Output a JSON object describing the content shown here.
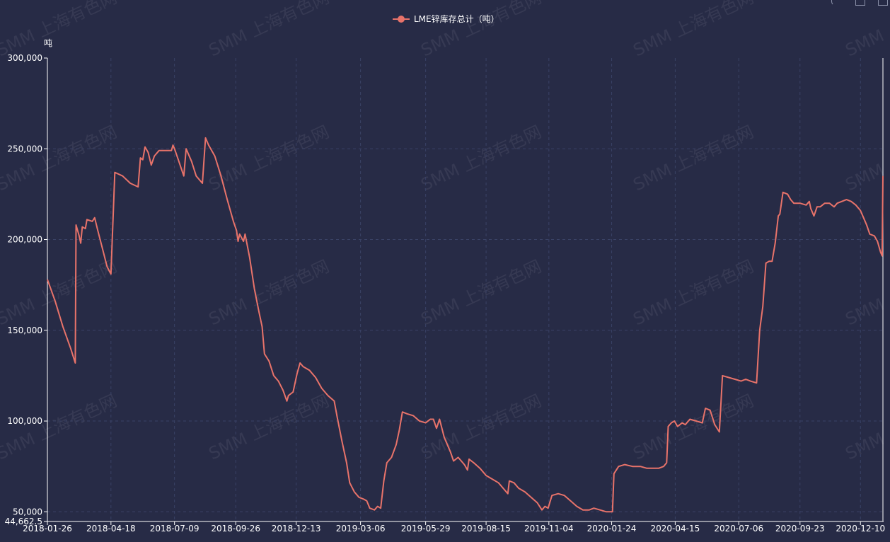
{
  "legend": {
    "label": "LME锌库存总计（吨）",
    "color": "#e8736a"
  },
  "watermark": {
    "text": "SMM 上海有色网"
  },
  "chart_data": {
    "type": "line",
    "ylabel": "吨",
    "ylim": [
      44662.5,
      300000
    ],
    "yticks": [
      {
        "value": 44662.5,
        "label": "44,662.5"
      },
      {
        "value": 50000,
        "label": "50,000"
      },
      {
        "value": 100000,
        "label": "100,000"
      },
      {
        "value": 150000,
        "label": "150,000"
      },
      {
        "value": 200000,
        "label": "200,000"
      },
      {
        "value": 250000,
        "label": "250,000"
      },
      {
        "value": 300000,
        "label": "300,000"
      }
    ],
    "xrange": [
      "2018-01-26",
      "2021-01-08"
    ],
    "xticks": [
      "2018-01-26",
      "2018-04-18",
      "2018-07-09",
      "2018-09-26",
      "2018-12-13",
      "2019-03-06",
      "2019-05-29",
      "2019-08-15",
      "2019-11-04",
      "2020-01-24",
      "2020-04-15",
      "2020-07-06",
      "2020-09-23",
      "2020-12-10"
    ],
    "grid": true,
    "series": [
      {
        "name": "LME锌库存总计（吨）",
        "color": "#e8736a",
        "points": [
          [
            "2018-01-26",
            178000
          ],
          [
            "2018-02-05",
            166000
          ],
          [
            "2018-02-15",
            152000
          ],
          [
            "2018-02-25",
            140000
          ],
          [
            "2018-03-03",
            132000
          ],
          [
            "2018-03-04",
            208000
          ],
          [
            "2018-03-08",
            202000
          ],
          [
            "2018-03-10",
            198000
          ],
          [
            "2018-03-12",
            207000
          ],
          [
            "2018-03-16",
            206000
          ],
          [
            "2018-03-18",
            211000
          ],
          [
            "2018-03-25",
            210000
          ],
          [
            "2018-03-28",
            212000
          ],
          [
            "2018-04-01",
            205000
          ],
          [
            "2018-04-07",
            195000
          ],
          [
            "2018-04-13",
            185000
          ],
          [
            "2018-04-18",
            181000
          ],
          [
            "2018-04-23",
            237000
          ],
          [
            "2018-05-03",
            235000
          ],
          [
            "2018-05-13",
            231000
          ],
          [
            "2018-05-23",
            229000
          ],
          [
            "2018-05-26",
            245000
          ],
          [
            "2018-05-29",
            244000
          ],
          [
            "2018-06-01",
            251000
          ],
          [
            "2018-06-05",
            248000
          ],
          [
            "2018-06-09",
            241000
          ],
          [
            "2018-06-13",
            246000
          ],
          [
            "2018-06-19",
            249000
          ],
          [
            "2018-06-27",
            249000
          ],
          [
            "2018-07-05",
            249000
          ],
          [
            "2018-07-07",
            252000
          ],
          [
            "2018-07-09",
            250000
          ],
          [
            "2018-07-13",
            245000
          ],
          [
            "2018-07-21",
            235000
          ],
          [
            "2018-07-24",
            250000
          ],
          [
            "2018-07-31",
            243000
          ],
          [
            "2018-08-06",
            235000
          ],
          [
            "2018-08-14",
            231000
          ],
          [
            "2018-08-18",
            256000
          ],
          [
            "2018-08-22",
            252000
          ],
          [
            "2018-08-30",
            246000
          ],
          [
            "2018-09-07",
            235000
          ],
          [
            "2018-09-15",
            222000
          ],
          [
            "2018-09-23",
            210000
          ],
          [
            "2018-09-27",
            205000
          ],
          [
            "2018-09-29",
            199000
          ],
          [
            "2018-10-01",
            203000
          ],
          [
            "2018-10-06",
            199000
          ],
          [
            "2018-10-08",
            203000
          ],
          [
            "2018-10-14",
            190000
          ],
          [
            "2018-10-20",
            173000
          ],
          [
            "2018-10-26",
            160000
          ],
          [
            "2018-10-30",
            152000
          ],
          [
            "2018-11-02",
            137000
          ],
          [
            "2018-11-08",
            133000
          ],
          [
            "2018-11-14",
            125000
          ],
          [
            "2018-11-20",
            122000
          ],
          [
            "2018-11-26",
            117000
          ],
          [
            "2018-12-01",
            111000
          ],
          [
            "2018-12-03",
            114000
          ],
          [
            "2018-12-09",
            116000
          ],
          [
            "2018-12-14",
            126000
          ],
          [
            "2018-12-18",
            132000
          ],
          [
            "2018-12-22",
            130000
          ],
          [
            "2018-12-30",
            128000
          ],
          [
            "2019-01-07",
            124000
          ],
          [
            "2019-01-15",
            118000
          ],
          [
            "2019-01-23",
            114000
          ],
          [
            "2019-01-31",
            111000
          ],
          [
            "2019-02-04",
            102000
          ],
          [
            "2019-02-10",
            89000
          ],
          [
            "2019-02-16",
            77000
          ],
          [
            "2019-02-20",
            66000
          ],
          [
            "2019-02-26",
            61000
          ],
          [
            "2019-03-04",
            58000
          ],
          [
            "2019-03-10",
            57000
          ],
          [
            "2019-03-14",
            56000
          ],
          [
            "2019-03-18",
            52000
          ],
          [
            "2019-03-24",
            51000
          ],
          [
            "2019-03-28",
            53000
          ],
          [
            "2019-04-01",
            52000
          ],
          [
            "2019-04-05",
            67000
          ],
          [
            "2019-04-09",
            77000
          ],
          [
            "2019-04-15",
            80000
          ],
          [
            "2019-04-21",
            87000
          ],
          [
            "2019-04-25",
            95000
          ],
          [
            "2019-04-29",
            105000
          ],
          [
            "2019-05-05",
            104000
          ],
          [
            "2019-05-13",
            103000
          ],
          [
            "2019-05-21",
            100000
          ],
          [
            "2019-05-29",
            99000
          ],
          [
            "2019-06-04",
            101000
          ],
          [
            "2019-06-08",
            101000
          ],
          [
            "2019-06-12",
            96000
          ],
          [
            "2019-06-16",
            101000
          ],
          [
            "2019-06-22",
            91000
          ],
          [
            "2019-06-30",
            83000
          ],
          [
            "2019-07-04",
            78000
          ],
          [
            "2019-07-10",
            80000
          ],
          [
            "2019-07-18",
            76000
          ],
          [
            "2019-07-22",
            73000
          ],
          [
            "2019-07-24",
            79000
          ],
          [
            "2019-07-30",
            77000
          ],
          [
            "2019-08-07",
            74000
          ],
          [
            "2019-08-15",
            70000
          ],
          [
            "2019-08-23",
            68000
          ],
          [
            "2019-08-31",
            66000
          ],
          [
            "2019-09-06",
            63000
          ],
          [
            "2019-09-12",
            60000
          ],
          [
            "2019-09-14",
            67000
          ],
          [
            "2019-09-20",
            66000
          ],
          [
            "2019-09-26",
            63000
          ],
          [
            "2019-10-04",
            61000
          ],
          [
            "2019-10-12",
            58000
          ],
          [
            "2019-10-20",
            55000
          ],
          [
            "2019-10-26",
            51000
          ],
          [
            "2019-10-30",
            53000
          ],
          [
            "2019-11-03",
            52000
          ],
          [
            "2019-11-08",
            59000
          ],
          [
            "2019-11-16",
            60000
          ],
          [
            "2019-11-24",
            59000
          ],
          [
            "2019-12-02",
            56000
          ],
          [
            "2019-12-10",
            53000
          ],
          [
            "2019-12-18",
            51000
          ],
          [
            "2019-12-26",
            51000
          ],
          [
            "2020-01-01",
            52000
          ],
          [
            "2020-01-09",
            51000
          ],
          [
            "2020-01-17",
            50000
          ],
          [
            "2020-01-25",
            50000
          ],
          [
            "2020-01-27",
            71000
          ],
          [
            "2020-02-02",
            75000
          ],
          [
            "2020-02-10",
            76000
          ],
          [
            "2020-02-20",
            75000
          ],
          [
            "2020-03-01",
            75000
          ],
          [
            "2020-03-09",
            74000
          ],
          [
            "2020-03-17",
            74000
          ],
          [
            "2020-03-25",
            74000
          ],
          [
            "2020-03-31",
            75000
          ],
          [
            "2020-04-04",
            77000
          ],
          [
            "2020-04-06",
            97000
          ],
          [
            "2020-04-10",
            99000
          ],
          [
            "2020-04-14",
            100000
          ],
          [
            "2020-04-18",
            97000
          ],
          [
            "2020-04-24",
            99000
          ],
          [
            "2020-04-28",
            98000
          ],
          [
            "2020-05-04",
            101000
          ],
          [
            "2020-05-12",
            100000
          ],
          [
            "2020-05-20",
            99000
          ],
          [
            "2020-05-24",
            107000
          ],
          [
            "2020-05-30",
            106000
          ],
          [
            "2020-06-05",
            98000
          ],
          [
            "2020-06-11",
            94000
          ],
          [
            "2020-06-15",
            125000
          ],
          [
            "2020-06-23",
            124000
          ],
          [
            "2020-07-01",
            123000
          ],
          [
            "2020-07-09",
            122000
          ],
          [
            "2020-07-15",
            123000
          ],
          [
            "2020-07-21",
            122000
          ],
          [
            "2020-07-29",
            121000
          ],
          [
            "2020-08-02",
            150000
          ],
          [
            "2020-08-06",
            163000
          ],
          [
            "2020-08-10",
            187000
          ],
          [
            "2020-08-14",
            188000
          ],
          [
            "2020-08-18",
            188000
          ],
          [
            "2020-08-22",
            198000
          ],
          [
            "2020-08-26",
            213000
          ],
          [
            "2020-08-28",
            214000
          ],
          [
            "2020-09-01",
            226000
          ],
          [
            "2020-09-07",
            225000
          ],
          [
            "2020-09-11",
            222000
          ],
          [
            "2020-09-15",
            220000
          ],
          [
            "2020-09-23",
            220000
          ],
          [
            "2020-10-01",
            219000
          ],
          [
            "2020-10-05",
            221000
          ],
          [
            "2020-10-07",
            217000
          ],
          [
            "2020-10-11",
            213000
          ],
          [
            "2020-10-15",
            218000
          ],
          [
            "2020-10-19",
            218000
          ],
          [
            "2020-10-25",
            220000
          ],
          [
            "2020-10-31",
            220000
          ],
          [
            "2020-11-06",
            218000
          ],
          [
            "2020-11-10",
            220000
          ],
          [
            "2020-11-16",
            221000
          ],
          [
            "2020-11-22",
            222000
          ],
          [
            "2020-11-28",
            221000
          ],
          [
            "2020-12-04",
            219000
          ],
          [
            "2020-12-10",
            216000
          ],
          [
            "2020-12-14",
            212000
          ],
          [
            "2020-12-18",
            208000
          ],
          [
            "2020-12-22",
            203000
          ],
          [
            "2020-12-28",
            202000
          ],
          [
            "2021-01-01",
            199000
          ],
          [
            "2021-01-05",
            193000
          ],
          [
            "2021-01-07",
            191000
          ],
          [
            "2021-01-08",
            235000
          ]
        ]
      }
    ]
  }
}
